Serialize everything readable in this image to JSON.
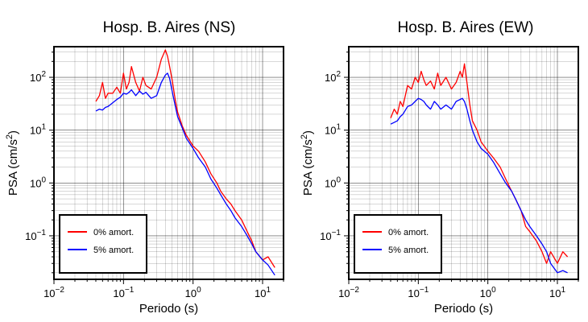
{
  "chart_data": [
    {
      "type": "line",
      "title": "Hosp. B. Aires (NS)",
      "xlabel": "Periodo (s)",
      "ylabel_main": "PSA (cm/s",
      "ylabel_sup": "2",
      "ylabel_tail": ")",
      "xscale": "log",
      "yscale": "log",
      "xlim": [
        0.01,
        20
      ],
      "ylim": [
        0.015,
        380
      ],
      "x_ticks": [
        {
          "b": "10",
          "e": "−2",
          "v": 0.01
        },
        {
          "b": "10",
          "e": "−1",
          "v": 0.1
        },
        {
          "b": "10",
          "e": "0",
          "v": 1
        },
        {
          "b": "10",
          "e": "1",
          "v": 10
        }
      ],
      "y_ticks": [
        {
          "b": "10",
          "e": "−1",
          "v": 0.1
        },
        {
          "b": "10",
          "e": "0",
          "v": 1
        },
        {
          "b": "10",
          "e": "1",
          "v": 10
        },
        {
          "b": "10",
          "e": "2",
          "v": 100
        }
      ],
      "grid": true,
      "legend_position": "bottom-left",
      "series": [
        {
          "name": "0% amort.",
          "color": "#ff0000",
          "x": [
            0.04,
            0.045,
            0.05,
            0.055,
            0.06,
            0.07,
            0.08,
            0.09,
            0.1,
            0.11,
            0.12,
            0.13,
            0.15,
            0.17,
            0.19,
            0.21,
            0.25,
            0.3,
            0.35,
            0.4,
            0.43,
            0.46,
            0.5,
            0.55,
            0.6,
            0.7,
            0.8,
            1.0,
            1.2,
            1.5,
            1.8,
            2.2,
            2.5,
            3.0,
            3.5,
            4.0,
            5.0,
            6.0,
            7.0,
            8.0,
            10.0,
            12.0,
            15.0
          ],
          "y": [
            35,
            45,
            80,
            40,
            50,
            50,
            65,
            50,
            120,
            60,
            80,
            160,
            80,
            55,
            100,
            70,
            60,
            100,
            220,
            330,
            250,
            160,
            90,
            40,
            22,
            12,
            8.0,
            5.0,
            4.0,
            2.5,
            1.5,
            1.0,
            0.7,
            0.5,
            0.4,
            0.3,
            0.2,
            0.12,
            0.08,
            0.05,
            0.035,
            0.04,
            0.025
          ]
        },
        {
          "name": "5% amort.",
          "color": "#0000ff",
          "x": [
            0.04,
            0.045,
            0.05,
            0.055,
            0.06,
            0.07,
            0.08,
            0.09,
            0.1,
            0.11,
            0.12,
            0.13,
            0.15,
            0.17,
            0.19,
            0.21,
            0.25,
            0.3,
            0.35,
            0.4,
            0.43,
            0.46,
            0.5,
            0.55,
            0.6,
            0.7,
            0.8,
            1.0,
            1.2,
            1.5,
            1.8,
            2.2,
            2.5,
            3.0,
            3.5,
            4.0,
            5.0,
            6.0,
            7.0,
            8.0,
            10.0,
            12.0,
            15.0
          ],
          "y": [
            23,
            25,
            24,
            27,
            28,
            33,
            38,
            42,
            50,
            48,
            52,
            58,
            45,
            55,
            48,
            52,
            40,
            45,
            80,
            110,
            120,
            95,
            55,
            30,
            18,
            11,
            7.0,
            4.5,
            3.0,
            2.0,
            1.2,
            0.8,
            0.6,
            0.4,
            0.3,
            0.22,
            0.15,
            0.1,
            0.07,
            0.05,
            0.035,
            0.028,
            0.018
          ]
        }
      ]
    },
    {
      "type": "line",
      "title": "Hosp. B. Aires (EW)",
      "xlabel": "Periodo (s)",
      "ylabel_main": "PSA (cm/s",
      "ylabel_sup": "2",
      "ylabel_tail": ")",
      "xscale": "log",
      "yscale": "log",
      "xlim": [
        0.01,
        20
      ],
      "ylim": [
        0.015,
        380
      ],
      "x_ticks": [
        {
          "b": "10",
          "e": "−2",
          "v": 0.01
        },
        {
          "b": "10",
          "e": "−1",
          "v": 0.1
        },
        {
          "b": "10",
          "e": "0",
          "v": 1
        },
        {
          "b": "10",
          "e": "1",
          "v": 10
        }
      ],
      "y_ticks": [
        {
          "b": "10",
          "e": "−1",
          "v": 0.1
        },
        {
          "b": "10",
          "e": "0",
          "v": 1
        },
        {
          "b": "10",
          "e": "1",
          "v": 10
        },
        {
          "b": "10",
          "e": "2",
          "v": 100
        }
      ],
      "grid": true,
      "legend_position": "bottom-left",
      "series": [
        {
          "name": "0% amort.",
          "color": "#ff0000",
          "x": [
            0.04,
            0.045,
            0.05,
            0.055,
            0.06,
            0.07,
            0.08,
            0.09,
            0.1,
            0.11,
            0.12,
            0.13,
            0.15,
            0.17,
            0.19,
            0.21,
            0.25,
            0.3,
            0.35,
            0.4,
            0.43,
            0.46,
            0.5,
            0.55,
            0.6,
            0.7,
            0.8,
            1.0,
            1.2,
            1.5,
            1.8,
            2.2,
            2.5,
            3.0,
            3.5,
            4.0,
            5.0,
            6.0,
            7.0,
            8.0,
            10.0,
            12.0,
            14.0
          ],
          "y": [
            17,
            25,
            20,
            35,
            28,
            70,
            60,
            100,
            80,
            130,
            90,
            70,
            85,
            60,
            120,
            70,
            100,
            60,
            80,
            130,
            100,
            180,
            80,
            30,
            15,
            10,
            6.0,
            4.0,
            3.0,
            2.0,
            1.2,
            0.7,
            0.5,
            0.3,
            0.15,
            0.12,
            0.08,
            0.05,
            0.03,
            0.05,
            0.03,
            0.05,
            0.04
          ]
        },
        {
          "name": "5% amort.",
          "color": "#0000ff",
          "x": [
            0.04,
            0.045,
            0.05,
            0.055,
            0.06,
            0.07,
            0.08,
            0.09,
            0.1,
            0.11,
            0.12,
            0.13,
            0.15,
            0.17,
            0.19,
            0.21,
            0.25,
            0.3,
            0.35,
            0.4,
            0.43,
            0.46,
            0.5,
            0.55,
            0.6,
            0.7,
            0.8,
            1.0,
            1.2,
            1.5,
            1.8,
            2.2,
            2.5,
            3.0,
            3.5,
            4.0,
            5.0,
            6.0,
            7.0,
            8.0,
            10.0,
            12.0,
            14.0
          ],
          "y": [
            13,
            14,
            15,
            18,
            20,
            28,
            30,
            35,
            40,
            38,
            35,
            30,
            25,
            35,
            30,
            25,
            30,
            25,
            35,
            38,
            40,
            35,
            25,
            15,
            10,
            6,
            4.5,
            3.5,
            2.5,
            1.5,
            1.0,
            0.7,
            0.5,
            0.3,
            0.2,
            0.15,
            0.1,
            0.07,
            0.05,
            0.03,
            0.02,
            0.022,
            0.02
          ]
        }
      ]
    }
  ]
}
